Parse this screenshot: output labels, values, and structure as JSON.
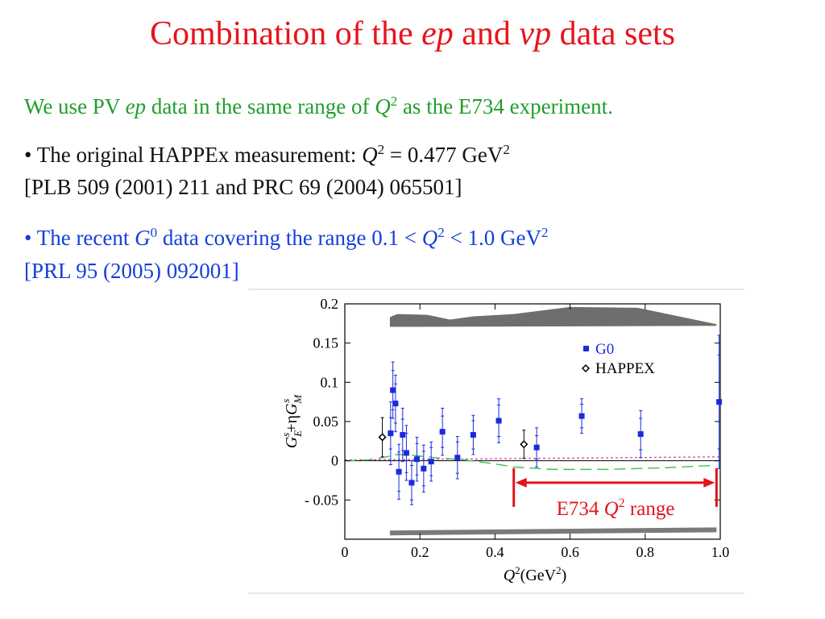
{
  "title": {
    "part1": "Combination of the ",
    "ep": "ep",
    "and": " and ",
    "vp": "νp",
    "part2": " data sets"
  },
  "intro": {
    "a": "We use PV ",
    "ep": "ep",
    "b": " data in the same range of ",
    "q": "Q",
    "sup": "2",
    "c": " as the E734 experiment."
  },
  "bullet1": {
    "a": "• The original HAPPEx measurement: ",
    "q": "Q",
    "sup": "2",
    "b": " = 0.477 GeV",
    "sup2": "2",
    "ref": "[PLB 509 (2001) 211  and  PRC 69 (2004) 065501]"
  },
  "bullet2": {
    "a": "• The recent ",
    "g": "G",
    "gsup": "0",
    "b": " data covering the range 0.1 < ",
    "q": "Q",
    "sup": "2",
    "c": " < 1.0 GeV",
    "sup2": "2",
    "ref": "[PRL 95 (2005) 092001]"
  },
  "chart_data": {
    "type": "scatter",
    "xlabel": "Q²(GeV²)",
    "ylabel": "G_E^s+ηG_M^s",
    "xlim": [
      0,
      1.0
    ],
    "ylim": [
      -0.1,
      0.2
    ],
    "xticks": [
      0,
      0.2,
      0.4,
      0.6,
      0.8,
      1.0
    ],
    "xtick_labels": [
      "0",
      "0.2",
      "0.4",
      "0.6",
      "0.8",
      "1.0"
    ],
    "yticks": [
      0.2,
      0.15,
      0.1,
      0.05,
      0,
      -0.05
    ],
    "ytick_labels": [
      "0.2",
      "0.15",
      "0.1",
      "0.05",
      "0",
      "- 0.05"
    ],
    "legend_position": "top-right",
    "series": [
      {
        "name": "G0",
        "color": "#1a2bdc",
        "marker": "square",
        "points": [
          {
            "x": 0.122,
            "y": 0.035,
            "err": 0.02,
            "errTot": 0.04
          },
          {
            "x": 0.128,
            "y": 0.09,
            "err": 0.025,
            "errTot": 0.036
          },
          {
            "x": 0.135,
            "y": 0.073,
            "err": 0.025,
            "errTot": 0.036
          },
          {
            "x": 0.144,
            "y": -0.014,
            "err": 0.025,
            "errTot": 0.035
          },
          {
            "x": 0.154,
            "y": 0.033,
            "err": 0.02,
            "errTot": 0.034
          },
          {
            "x": 0.164,
            "y": 0.01,
            "err": 0.025,
            "errTot": 0.035
          },
          {
            "x": 0.178,
            "y": -0.028,
            "err": 0.022,
            "errTot": 0.028
          },
          {
            "x": 0.192,
            "y": 0.002,
            "err": 0.02,
            "errTot": 0.028
          },
          {
            "x": 0.21,
            "y": -0.01,
            "err": 0.022,
            "errTot": 0.03
          },
          {
            "x": 0.23,
            "y": -0.001,
            "err": 0.018,
            "errTot": 0.025
          },
          {
            "x": 0.26,
            "y": 0.037,
            "err": 0.02,
            "errTot": 0.03
          },
          {
            "x": 0.3,
            "y": 0.004,
            "err": 0.02,
            "errTot": 0.027
          },
          {
            "x": 0.342,
            "y": 0.033,
            "err": 0.018,
            "errTot": 0.025
          },
          {
            "x": 0.41,
            "y": 0.051,
            "err": 0.02,
            "errTot": 0.028
          },
          {
            "x": 0.511,
            "y": 0.017,
            "err": 0.015,
            "errTot": 0.025
          },
          {
            "x": 0.631,
            "y": 0.057,
            "err": 0.015,
            "errTot": 0.022
          },
          {
            "x": 0.788,
            "y": 0.034,
            "err": 0.02,
            "errTot": 0.03
          },
          {
            "x": 0.997,
            "y": 0.075,
            "err": 0.06,
            "errTot": 0.085
          }
        ]
      },
      {
        "name": "HAPPEX",
        "color": "#000000",
        "marker": "diamond-open",
        "points": [
          {
            "x": 0.1,
            "y": 0.03,
            "err": 0.025
          },
          {
            "x": 0.477,
            "y": 0.021,
            "err": 0.018
          }
        ]
      }
    ],
    "upper_band": [
      [
        0.12,
        0.183
      ],
      [
        0.14,
        0.187
      ],
      [
        0.22,
        0.186
      ],
      [
        0.28,
        0.18
      ],
      [
        0.34,
        0.184
      ],
      [
        0.45,
        0.187
      ],
      [
        0.6,
        0.196
      ],
      [
        0.78,
        0.195
      ],
      [
        0.99,
        0.174
      ]
    ],
    "lower_band_y": [
      -0.092,
      -0.088
    ],
    "curve_green": [
      [
        0,
        0
      ],
      [
        0.06,
        0.001
      ],
      [
        0.1,
        0.004
      ],
      [
        0.14,
        0.008
      ],
      [
        0.18,
        0.007
      ],
      [
        0.24,
        0.004
      ],
      [
        0.32,
        0.001
      ],
      [
        0.4,
        -0.004
      ],
      [
        0.45,
        -0.008
      ],
      [
        0.55,
        -0.011
      ],
      [
        0.7,
        -0.011
      ],
      [
        0.85,
        -0.009
      ],
      [
        0.98,
        -0.006
      ]
    ],
    "curve_magenta": [
      [
        0,
        0.001
      ],
      [
        0.5,
        0.003
      ],
      [
        1.0,
        0.005
      ]
    ],
    "annotation": {
      "label_a": "E734 ",
      "label_q": "Q",
      "label_sup": "2",
      "label_b": " range",
      "x_start": 0.45,
      "x_end": 0.99,
      "color": "#e3141b"
    }
  }
}
